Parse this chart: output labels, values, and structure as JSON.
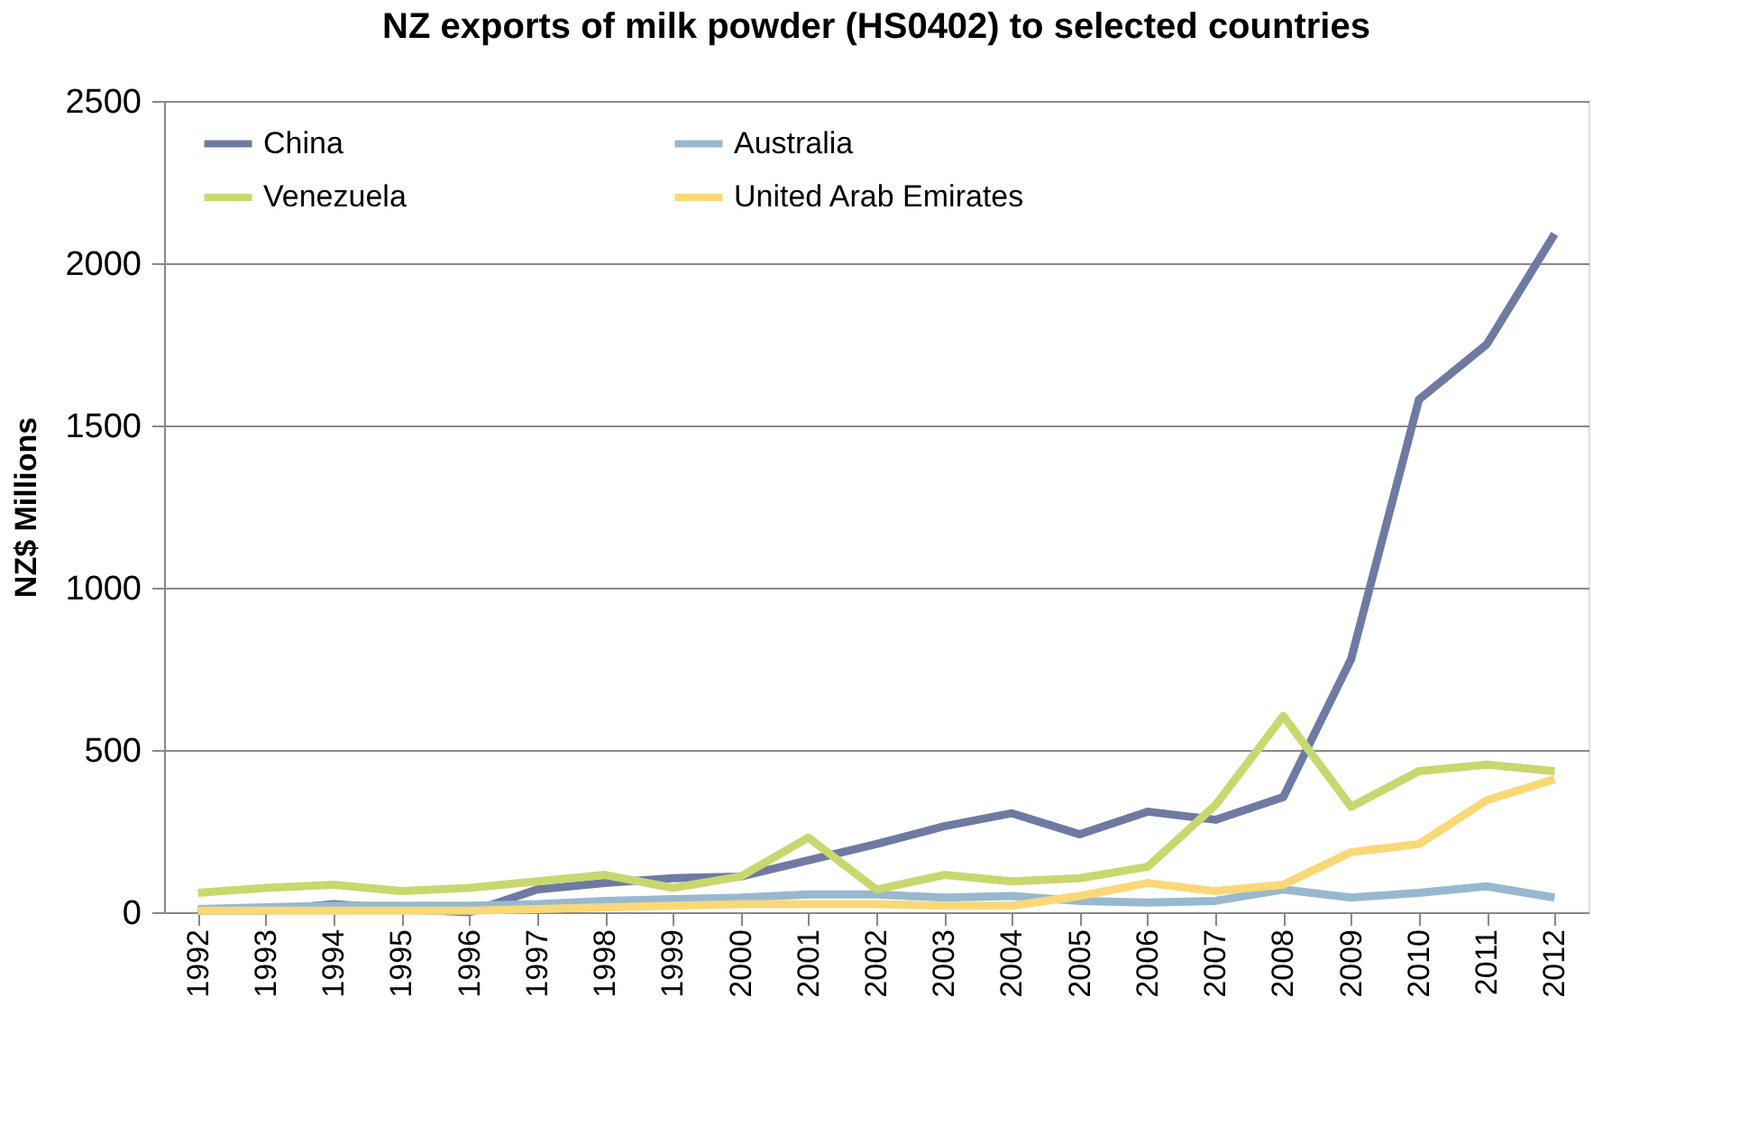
{
  "chart_data": {
    "type": "line",
    "title": "NZ exports of milk powder (HS0402) to selected countries",
    "ylabel": "NZ$ Millions",
    "categories": [
      "1992",
      "1993",
      "1994",
      "1995",
      "1996",
      "1997",
      "1998",
      "1999",
      "2000",
      "2001",
      "2002",
      "2003",
      "2004",
      "2005",
      "2006",
      "2007",
      "2008",
      "2009",
      "2010",
      "2011",
      "2012"
    ],
    "series": [
      {
        "name": "China",
        "color": "#6f7aa3",
        "values": [
          5,
          5,
          25,
          10,
          0,
          70,
          90,
          105,
          110,
          160,
          210,
          265,
          305,
          240,
          310,
          285,
          355,
          780,
          1580,
          1750,
          2090
        ]
      },
      {
        "name": "Australia",
        "color": "#98b8cf",
        "values": [
          10,
          15,
          20,
          20,
          20,
          25,
          35,
          40,
          45,
          55,
          55,
          45,
          50,
          35,
          30,
          35,
          70,
          45,
          60,
          80,
          45
        ]
      },
      {
        "name": "Venezuela",
        "color": "#c8d86e",
        "values": [
          60,
          75,
          85,
          65,
          75,
          95,
          115,
          75,
          110,
          230,
          70,
          115,
          95,
          105,
          140,
          330,
          605,
          325,
          435,
          455,
          435
        ]
      },
      {
        "name": "United Arab Emirates",
        "color": "#f9d877",
        "values": [
          5,
          5,
          5,
          5,
          5,
          10,
          15,
          20,
          25,
          25,
          25,
          20,
          20,
          50,
          90,
          65,
          85,
          185,
          210,
          345,
          410
        ]
      }
    ],
    "ylim": [
      0,
      2500
    ],
    "yticks": [
      0,
      500,
      1000,
      1500,
      2000,
      2500
    ],
    "grid": "y",
    "legend": "top",
    "marker": "none",
    "line_style": "solid"
  }
}
